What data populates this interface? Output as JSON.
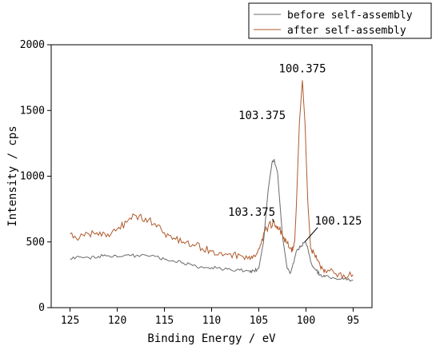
{
  "chart_data": {
    "type": "line",
    "title": "",
    "xlabel": "Binding Energy / eV",
    "ylabel": "Intensity / cps",
    "xlim": [
      127,
      93
    ],
    "ylim": [
      0,
      2000
    ],
    "x_ticks": [
      125,
      120,
      115,
      110,
      105,
      100,
      95
    ],
    "y_ticks": [
      0,
      500,
      1000,
      1500,
      2000
    ],
    "grid": false,
    "legend_position": "top-right",
    "series": [
      {
        "name": "before self-assembly",
        "color": "#6b6b6b",
        "points": [
          [
            125,
            370
          ],
          [
            124,
            385
          ],
          [
            123,
            380
          ],
          [
            122,
            390
          ],
          [
            121,
            395
          ],
          [
            120,
            385
          ],
          [
            119,
            400
          ],
          [
            118,
            395
          ],
          [
            117,
            400
          ],
          [
            116,
            390
          ],
          [
            115,
            370
          ],
          [
            114,
            355
          ],
          [
            113,
            340
          ],
          [
            112,
            320
          ],
          [
            111,
            310
          ],
          [
            110,
            305
          ],
          [
            109,
            295
          ],
          [
            108,
            290
          ],
          [
            107,
            285
          ],
          [
            106,
            280
          ],
          [
            105.5,
            280
          ],
          [
            105,
            300
          ],
          [
            104.5,
            500
          ],
          [
            104,
            900
          ],
          [
            103.6,
            1100
          ],
          [
            103.375,
            1130
          ],
          [
            103,
            1020
          ],
          [
            102.5,
            550
          ],
          [
            102,
            300
          ],
          [
            101.7,
            260
          ],
          [
            101.3,
            340
          ],
          [
            101,
            430
          ],
          [
            100.5,
            470
          ],
          [
            100.125,
            500
          ],
          [
            99.8,
            450
          ],
          [
            99.5,
            350
          ],
          [
            99,
            290
          ],
          [
            98.5,
            250
          ],
          [
            98,
            235
          ],
          [
            97,
            225
          ],
          [
            96,
            215
          ],
          [
            95,
            210
          ]
        ]
      },
      {
        "name": "after self-assembly",
        "color": "#b05a2c",
        "points": [
          [
            125,
            560
          ],
          [
            124,
            530
          ],
          [
            123,
            560
          ],
          [
            122,
            550
          ],
          [
            121,
            560
          ],
          [
            120,
            600
          ],
          [
            119,
            650
          ],
          [
            118,
            700
          ],
          [
            117,
            680
          ],
          [
            116,
            640
          ],
          [
            115,
            570
          ],
          [
            114,
            530
          ],
          [
            113,
            500
          ],
          [
            112,
            480
          ],
          [
            111,
            450
          ],
          [
            110,
            430
          ],
          [
            109,
            420
          ],
          [
            108,
            410
          ],
          [
            107,
            400
          ],
          [
            106,
            390
          ],
          [
            105.5,
            400
          ],
          [
            105,
            450
          ],
          [
            104.5,
            560
          ],
          [
            104,
            620
          ],
          [
            103.375,
            650
          ],
          [
            103,
            620
          ],
          [
            102.5,
            560
          ],
          [
            102,
            490
          ],
          [
            101.5,
            420
          ],
          [
            101.2,
            500
          ],
          [
            101,
            800
          ],
          [
            100.7,
            1400
          ],
          [
            100.375,
            1730
          ],
          [
            100.1,
            1400
          ],
          [
            99.8,
            800
          ],
          [
            99.5,
            450
          ],
          [
            99,
            380
          ],
          [
            98.5,
            320
          ],
          [
            98,
            290
          ],
          [
            97,
            260
          ],
          [
            96,
            250
          ],
          [
            95,
            250
          ]
        ]
      }
    ],
    "annotations": [
      {
        "text": "100.375",
        "x": 100.375,
        "y": 1730
      },
      {
        "text": "103.375",
        "x": 103.375,
        "y": 1130
      },
      {
        "text": "103.375",
        "x": 103.375,
        "y": 650
      },
      {
        "text": "100.125",
        "x": 100.125,
        "y": 500
      }
    ]
  }
}
